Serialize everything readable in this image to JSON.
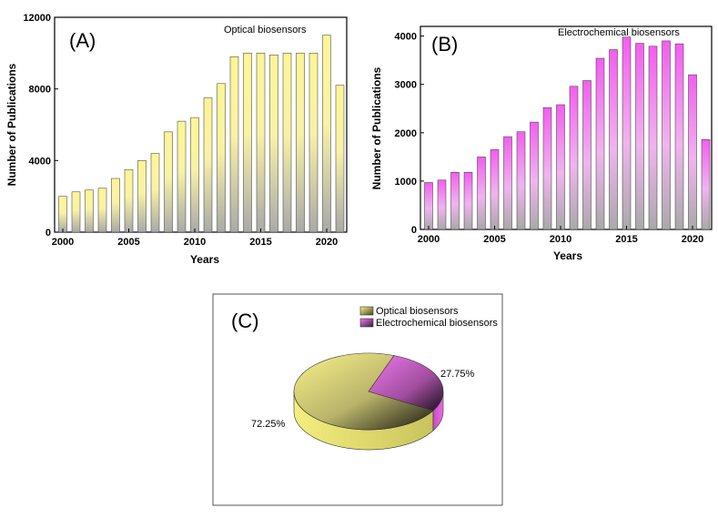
{
  "chart_data": [
    {
      "type": "bar",
      "panel": "(A)",
      "annotation": "Optical biosensors",
      "xlabel": "Years",
      "ylabel": "Number of Publications",
      "categories": [
        2000,
        2001,
        2002,
        2003,
        2004,
        2005,
        2006,
        2007,
        2008,
        2009,
        2010,
        2011,
        2012,
        2013,
        2014,
        2015,
        2016,
        2017,
        2018,
        2019,
        2020,
        2021
      ],
      "values": [
        2000,
        2250,
        2350,
        2450,
        3000,
        3500,
        4000,
        4400,
        5600,
        6200,
        6400,
        7500,
        8300,
        9800,
        10000,
        10000,
        9900,
        10000,
        10000,
        10000,
        11000,
        8200
      ],
      "xticks": [
        "2000",
        "2005",
        "2010",
        "2015",
        "2020"
      ],
      "yticks": [
        "0",
        "4000",
        "8000",
        "12000"
      ],
      "ylim": [
        0,
        12000
      ],
      "color_top": "#fcf596",
      "color_bottom": "#a9a9a9"
    },
    {
      "type": "bar",
      "panel": "(B)",
      "annotation": "Electrochemical biosensors",
      "xlabel": "Years",
      "ylabel": "Number of Publications",
      "categories": [
        2000,
        2001,
        2002,
        2003,
        2004,
        2005,
        2006,
        2007,
        2008,
        2009,
        2010,
        2011,
        2012,
        2013,
        2014,
        2015,
        2016,
        2017,
        2018,
        2019,
        2020,
        2021
      ],
      "values": [
        970,
        1020,
        1180,
        1180,
        1500,
        1650,
        1920,
        2020,
        2220,
        2520,
        2580,
        2960,
        3080,
        3540,
        3720,
        3980,
        3850,
        3790,
        3900,
        3840,
        3200,
        1860
      ],
      "xticks": [
        "2000",
        "2005",
        "2010",
        "2015",
        "2020"
      ],
      "yticks": [
        "0",
        "1000",
        "2000",
        "3000",
        "4000"
      ],
      "ylim": [
        0,
        4200
      ],
      "color_top": "#f35ef0",
      "color_bottom": "#a9a9a9"
    },
    {
      "type": "pie",
      "panel": "(C)",
      "labels": [
        "Optical biosensors",
        "Electrochemical biosensors"
      ],
      "values": [
        72.25,
        27.75
      ],
      "value_labels": [
        "72.25%",
        "27.75%"
      ],
      "colors": [
        "#f4ee7e",
        "#e96be6"
      ],
      "legend_position": "top-right"
    }
  ]
}
